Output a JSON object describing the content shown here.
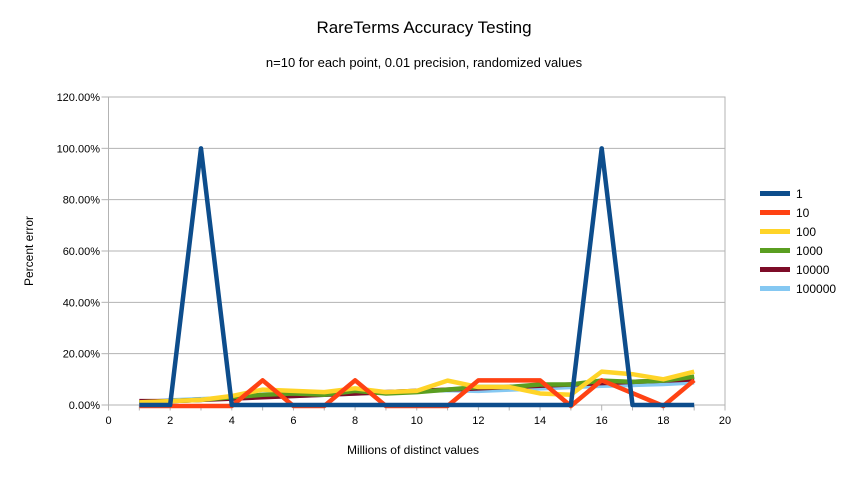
{
  "chart_data": {
    "type": "line",
    "title": "RareTerms Accuracy Testing",
    "subtitle": "n=10 for each point, 0.01 precision, randomized values",
    "xlabel": "Millions of distinct values",
    "ylabel": "Percent error",
    "grid": "horizontal",
    "grid_color": "#b3b3b3",
    "background_color": "#ffffff",
    "legend_position": "right",
    "x_axis": {
      "min": 0,
      "max": 20,
      "major_step": 2,
      "minor_step": 1,
      "tick_labels": [
        "0",
        "2",
        "4",
        "6",
        "8",
        "10",
        "12",
        "14",
        "16",
        "18",
        "20"
      ]
    },
    "y_axis": {
      "min": 0,
      "max": 120,
      "major_step": 20,
      "unit": "percent",
      "tick_labels": [
        "0.00%",
        "20.00%",
        "40.00%",
        "60.00%",
        "80.00%",
        "100.00%",
        "120.00%"
      ]
    },
    "x": [
      1,
      2,
      3,
      4,
      5,
      6,
      7,
      8,
      9,
      10,
      11,
      12,
      13,
      14,
      15,
      16,
      17,
      18,
      19
    ],
    "series": [
      {
        "name": "1",
        "color": "#0d4d8c",
        "values": [
          0,
          0,
          100,
          0,
          0,
          0,
          0,
          0,
          0,
          0,
          0,
          0,
          0,
          0,
          0,
          100,
          0,
          0,
          0
        ]
      },
      {
        "name": "10",
        "color": "#ff4213",
        "values": [
          0,
          0,
          0,
          0,
          10,
          0,
          0,
          10,
          0,
          0,
          0,
          10,
          10,
          10,
          0,
          10,
          5,
          0,
          10
        ]
      },
      {
        "name": "100",
        "color": "#ffd428",
        "values": [
          1,
          1.5,
          2,
          3.5,
          6,
          5.5,
          5,
          6.5,
          5,
          5.5,
          9.5,
          7,
          7,
          4.5,
          4,
          13,
          12,
          10,
          13
        ]
      },
      {
        "name": "1000",
        "color": "#5a9e20",
        "values": [
          1,
          1.5,
          2,
          3,
          4,
          4.5,
          4,
          5.5,
          4.5,
          5,
          6,
          7,
          7,
          8,
          8,
          9.5,
          9,
          9.5,
          11
        ]
      },
      {
        "name": "10000",
        "color": "#7d0c28",
        "values": [
          1.5,
          1.5,
          2,
          2.5,
          3,
          3.5,
          4,
          4.5,
          5,
          5.5,
          6,
          6.5,
          7,
          7.5,
          8,
          8.5,
          9,
          9.5,
          10
        ]
      },
      {
        "name": "100000",
        "color": "#85c8f2",
        "values": [
          1,
          1.8,
          2.3,
          2.8,
          3.2,
          3.5,
          4,
          4.5,
          5,
          5.5,
          5.8,
          5.5,
          6,
          6.5,
          7,
          7.5,
          7.8,
          8.2,
          8.8
        ]
      }
    ]
  }
}
